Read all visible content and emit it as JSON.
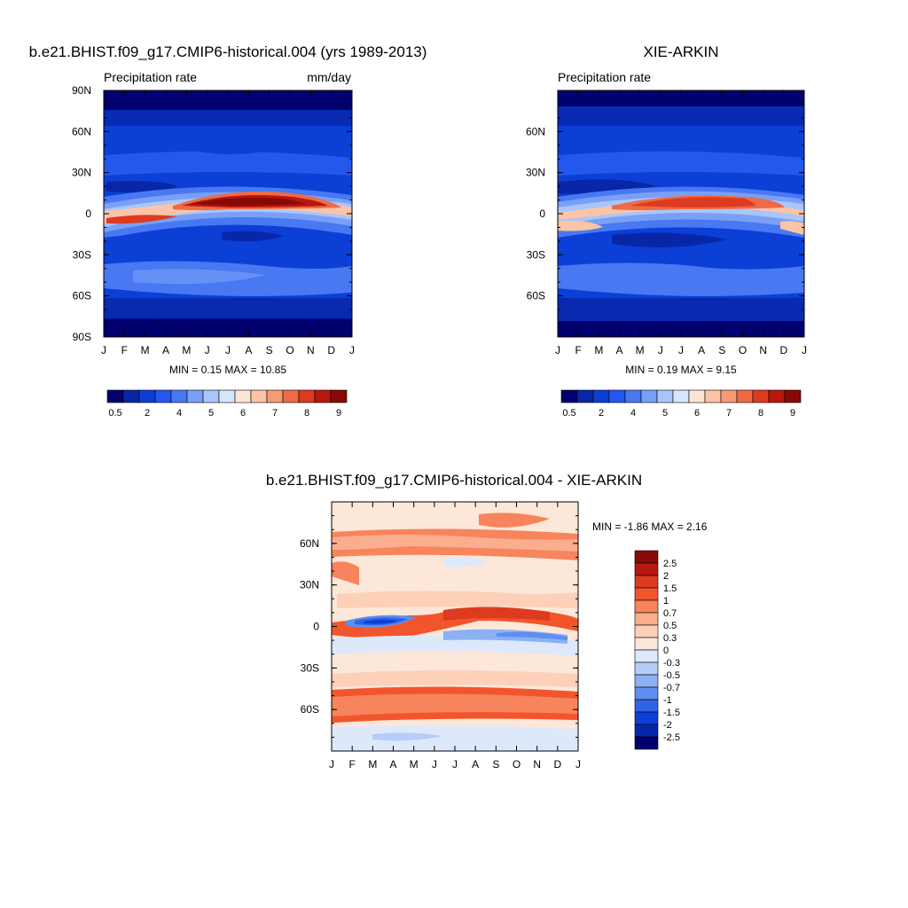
{
  "chart_data": [
    {
      "type": "heatmap",
      "title": "b.e21.BHIST.f09_g17.CMIP6-historical.004 (yrs 1989-2013)",
      "left_label": "Precipitation rate",
      "right_label": "mm/day",
      "x_ticks": [
        "J",
        "F",
        "M",
        "A",
        "M",
        "J",
        "J",
        "A",
        "S",
        "O",
        "N",
        "D",
        "J"
      ],
      "y_ticks": [
        "90N",
        "60N",
        "30N",
        "0",
        "30S",
        "60S",
        "90S"
      ],
      "y_tick_values": [
        90,
        60,
        30,
        0,
        -30,
        -60,
        -90
      ],
      "ylim": [
        -90,
        90
      ],
      "stats": "MIN =   0.15 MAX =  10.85",
      "colorbar_labels": [
        "0.5",
        "2",
        "4",
        "5",
        "6",
        "7",
        "8",
        "9"
      ],
      "colorbar_colors": [
        "#02006e",
        "#0826a8",
        "#0b3fd6",
        "#2457ee",
        "#4878f2",
        "#79a0f6",
        "#a9c5fa",
        "#d7e6fc",
        "#fde5d5",
        "#fbc4a7",
        "#f79a76",
        "#ef6a46",
        "#dd3b1f",
        "#b8180d",
        "#890906"
      ],
      "features": {
        "itcz_peak_month": "Jul-Aug",
        "itcz_peak_lat": 8,
        "max_value": 10.85,
        "min_value": 0.15
      }
    },
    {
      "type": "heatmap",
      "title": "XIE-ARKIN",
      "left_label": "Precipitation rate",
      "right_label": "",
      "x_ticks": [
        "J",
        "F",
        "M",
        "A",
        "M",
        "J",
        "J",
        "A",
        "S",
        "O",
        "N",
        "D",
        "J"
      ],
      "y_ticks": [
        "60N",
        "30N",
        "0",
        "30S",
        "60S"
      ],
      "y_tick_values": [
        60,
        30,
        0,
        -30,
        -60
      ],
      "ylim": [
        -90,
        90
      ],
      "stats": "MIN =   0.19 MAX =   9.15",
      "colorbar_labels": [
        "0.5",
        "2",
        "4",
        "5",
        "6",
        "7",
        "8",
        "9"
      ],
      "colorbar_colors": [
        "#02006e",
        "#0826a8",
        "#0b3fd6",
        "#2457ee",
        "#4878f2",
        "#79a0f6",
        "#a9c5fa",
        "#d7e6fc",
        "#fde5d5",
        "#fbc4a7",
        "#f79a76",
        "#ef6a46",
        "#dd3b1f",
        "#b8180d",
        "#890906"
      ],
      "features": {
        "itcz_peak_month": "Aug",
        "itcz_peak_lat": 7,
        "max_value": 9.15,
        "min_value": 0.19
      }
    },
    {
      "type": "heatmap",
      "title": "b.e21.BHIST.f09_g17.CMIP6-historical.004 - XIE-ARKIN",
      "x_ticks": [
        "J",
        "F",
        "M",
        "A",
        "M",
        "J",
        "J",
        "A",
        "S",
        "O",
        "N",
        "D",
        "J"
      ],
      "y_ticks": [
        "60N",
        "30N",
        "0",
        "30S",
        "60S"
      ],
      "y_tick_values": [
        60,
        30,
        0,
        -30,
        -60
      ],
      "ylim": [
        -90,
        90
      ],
      "stats": "MIN =  -1.86 MAX =   2.16",
      "colorbar_labels": [
        "2.5",
        "2",
        "1.5",
        "1",
        "0.7",
        "0.5",
        "0.3",
        "0",
        "-0.3",
        "-0.5",
        "-0.7",
        "-1",
        "-1.5",
        "-2",
        "-2.5"
      ],
      "colorbar_colors": [
        "#890906",
        "#b8180d",
        "#dd3b1f",
        "#f2552c",
        "#f7845c",
        "#fbae8e",
        "#fdd0b8",
        "#fde7d8",
        "#dde9fb",
        "#b5cdf8",
        "#8bb0f4",
        "#5e8ef0",
        "#2f64e6",
        "#0b3fd6",
        "#0826a8",
        "#02006e"
      ],
      "features": {
        "diff_min": -1.86,
        "diff_max": 2.16,
        "negative_band_month": "Mar-Apr",
        "negative_band_lat": 7,
        "positive_band_lat": -55
      }
    }
  ]
}
